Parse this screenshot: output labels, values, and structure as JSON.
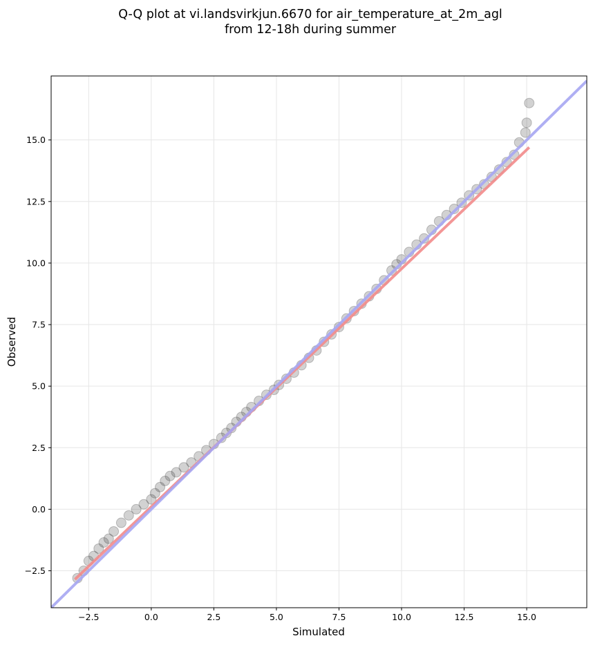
{
  "chart_data": {
    "type": "scatter",
    "title": [
      "Q-Q plot at vi.landsvirkjun.6670 for air_temperature_at_2m_agl",
      "from 12-18h during summer"
    ],
    "xlabel": "Simulated",
    "ylabel": "Observed",
    "xlim": [
      -4.0,
      17.4
    ],
    "ylim": [
      -4.0,
      17.6
    ],
    "x_ticks": [
      -2.5,
      0.0,
      2.5,
      5.0,
      7.5,
      10.0,
      12.5,
      15.0
    ],
    "y_ticks": [
      -2.5,
      0.0,
      2.5,
      5.0,
      7.5,
      10.0,
      12.5,
      15.0
    ],
    "x_tick_labels": [
      "−2.5",
      "0.0",
      "2.5",
      "5.0",
      "7.5",
      "10.0",
      "12.5",
      "15.0"
    ],
    "y_tick_labels": [
      "−2.5",
      "0.0",
      "2.5",
      "5.0",
      "7.5",
      "10.0",
      "12.5",
      "15.0"
    ],
    "grid": true,
    "series": [
      {
        "kind": "points",
        "color": "#333333",
        "x": [
          -2.95,
          -2.7,
          -2.5,
          -2.3,
          -2.1,
          -1.9,
          -1.7,
          -1.5,
          -1.2,
          -0.9,
          -0.6,
          -0.3,
          0.0,
          0.15,
          0.35,
          0.55,
          0.75,
          1.0,
          1.3,
          1.6,
          1.9,
          2.2,
          2.5,
          2.8,
          3.0,
          3.2,
          3.4,
          3.6,
          3.8,
          4.0,
          4.3,
          4.6,
          4.9,
          5.1,
          5.4,
          5.7,
          6.0,
          6.3,
          6.6,
          6.9,
          7.2,
          7.5,
          7.8,
          8.1,
          8.4,
          8.7,
          9.0,
          9.3,
          9.6,
          9.8,
          10.0,
          10.3,
          10.6,
          10.9,
          11.2,
          11.5,
          11.8,
          12.1,
          12.4,
          12.7,
          13.0,
          13.3,
          13.6,
          13.9,
          14.2,
          14.5,
          14.7,
          14.95,
          15.0,
          15.1
        ],
        "y": [
          -2.8,
          -2.5,
          -2.1,
          -1.9,
          -1.6,
          -1.35,
          -1.2,
          -0.9,
          -0.55,
          -0.25,
          0.0,
          0.2,
          0.4,
          0.65,
          0.9,
          1.15,
          1.35,
          1.5,
          1.7,
          1.9,
          2.15,
          2.4,
          2.65,
          2.9,
          3.1,
          3.3,
          3.55,
          3.75,
          3.95,
          4.15,
          4.4,
          4.65,
          4.85,
          5.05,
          5.3,
          5.55,
          5.85,
          6.15,
          6.45,
          6.8,
          7.1,
          7.4,
          7.75,
          8.05,
          8.35,
          8.65,
          8.95,
          9.3,
          9.7,
          9.95,
          10.15,
          10.45,
          10.75,
          11.0,
          11.35,
          11.7,
          11.95,
          12.2,
          12.45,
          12.75,
          13.0,
          13.2,
          13.5,
          13.8,
          14.1,
          14.4,
          14.9,
          15.3,
          15.7,
          16.5
        ]
      },
      {
        "kind": "line",
        "color": "#f28b8b",
        "x": [
          -3.05,
          15.1
        ],
        "y": [
          -2.85,
          14.7
        ]
      },
      {
        "kind": "line",
        "color": "#a6a6f2",
        "x": [
          -4.0,
          17.4
        ],
        "y": [
          -4.0,
          17.4
        ]
      }
    ]
  }
}
